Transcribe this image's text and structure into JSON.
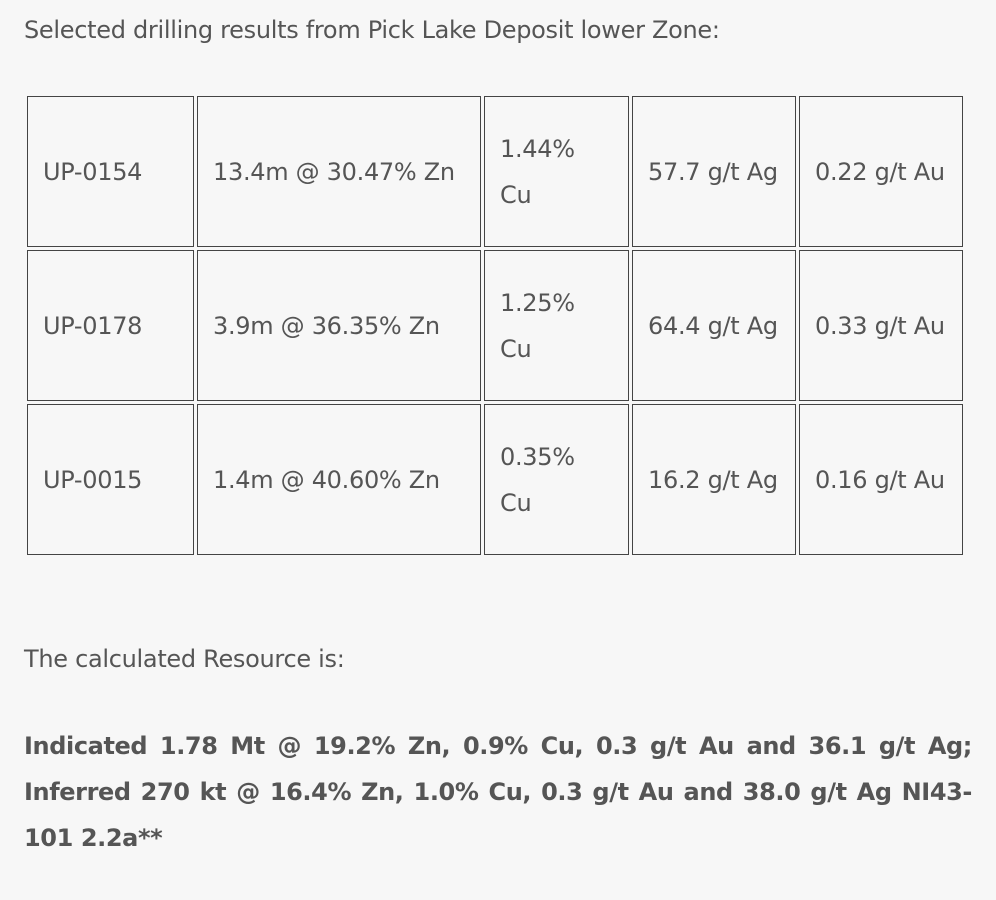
{
  "intro": "Selected drilling results from Pick Lake Deposit lower Zone:",
  "rows": [
    {
      "hole": "UP-0154",
      "interval": "13.4m @ 30.47% Zn",
      "cu": "1.44% Cu",
      "ag": "57.7 g/t Ag",
      "au": "0.22 g/t Au"
    },
    {
      "hole": "UP-0178",
      "interval": "3.9m @ 36.35% Zn",
      "cu": "1.25% Cu",
      "ag": "64.4 g/t Ag",
      "au": "0.33 g/t Au"
    },
    {
      "hole": "UP-0015",
      "interval": "1.4m @ 40.60% Zn",
      "cu": "0.35% Cu",
      "ag": "16.2 g/t Ag",
      "au": "0.16 g/t Au"
    }
  ],
  "calc_intro": "The calculated Resource is:",
  "resource": "Indicated 1.78 Mt @ 19.2% Zn, 0.9% Cu, 0.3 g/t Au and 36.1 g/t Ag; Inferred 270 kt @ 16.4% Zn, 1.0% Cu, 0.3 g/t Au and 38.0 g/t Ag NI43-101 2.2a**"
}
